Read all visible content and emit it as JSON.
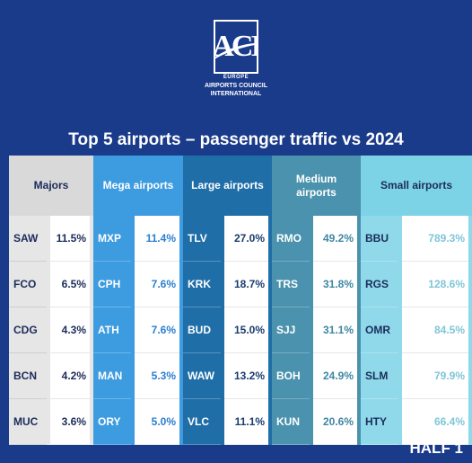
{
  "logo": {
    "letters": "ACI",
    "region": "EUROPE",
    "name_line1": "AIRPORTS COUNCIL",
    "name_line2": "INTERNATIONAL"
  },
  "title": "Top 5 airports – passenger traffic vs 2024",
  "footer": "HALF 1",
  "columns": [
    {
      "header": "Majors",
      "rows": [
        {
          "code": "SAW",
          "value": "11.5%"
        },
        {
          "code": "FCO",
          "value": "6.5%"
        },
        {
          "code": "CDG",
          "value": "4.3%"
        },
        {
          "code": "BCN",
          "value": "4.2%"
        },
        {
          "code": "MUC",
          "value": "3.6%"
        }
      ]
    },
    {
      "header": "Mega airports",
      "rows": [
        {
          "code": "MXP",
          "value": "11.4%"
        },
        {
          "code": "CPH",
          "value": "7.6%"
        },
        {
          "code": "ATH",
          "value": "7.6%"
        },
        {
          "code": "MAN",
          "value": "5.3%"
        },
        {
          "code": "ORY",
          "value": "5.0%"
        }
      ]
    },
    {
      "header": "Large airports",
      "rows": [
        {
          "code": "TLV",
          "value": "27.0%"
        },
        {
          "code": "KRK",
          "value": "18.7%"
        },
        {
          "code": "BUD",
          "value": "15.0%"
        },
        {
          "code": "WAW",
          "value": "13.2%"
        },
        {
          "code": "VLC",
          "value": "11.1%"
        }
      ]
    },
    {
      "header": "Medium airports",
      "rows": [
        {
          "code": "RMO",
          "value": "49.2%"
        },
        {
          "code": "TRS",
          "value": "31.8%"
        },
        {
          "code": "SJJ",
          "value": "31.1%"
        },
        {
          "code": "BOH",
          "value": "24.9%"
        },
        {
          "code": "KUN",
          "value": "20.6%"
        }
      ]
    },
    {
      "header": "Small airports",
      "rows": [
        {
          "code": "BBU",
          "value": "789.3%"
        },
        {
          "code": "RGS",
          "value": "128.6%"
        },
        {
          "code": "OMR",
          "value": "84.5%"
        },
        {
          "code": "SLM",
          "value": "79.9%"
        },
        {
          "code": "HTY",
          "value": "66.4%"
        }
      ]
    }
  ],
  "colors": {
    "background": "#1a3a8a",
    "majors": "#e6e6e6",
    "mega": "#3d9be0",
    "large": "#1f6ea8",
    "medium": "#4a92ad",
    "small": "#8fd9ea"
  }
}
